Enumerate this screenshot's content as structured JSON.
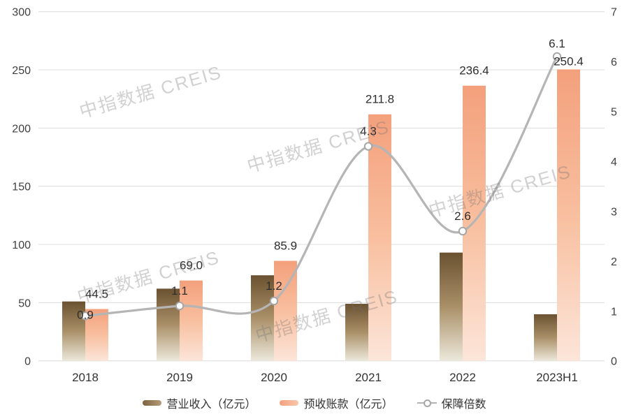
{
  "watermark": "中指数据 CREIS",
  "chart_data": {
    "type": "combo-bar-line",
    "categories": [
      "2018",
      "2019",
      "2020",
      "2021",
      "2022",
      "2023H1"
    ],
    "series": [
      {
        "name": "营业收入（亿元）",
        "type": "bar",
        "axis": "left",
        "values": [
          51,
          62,
          73.5,
          49,
          93,
          40
        ],
        "labels": [
          "",
          "",
          "",
          "",
          "",
          ""
        ],
        "color_top": "#6a5130",
        "color_mid": "#aa9068",
        "color_bottom": "#ece8db"
      },
      {
        "name": "预收账款（亿元）",
        "type": "bar",
        "axis": "left",
        "values": [
          44.5,
          69.0,
          85.9,
          211.8,
          236.4,
          250.4
        ],
        "labels": [
          "44.5",
          "69.0",
          "85.9",
          "211.8",
          "236.4",
          "250.4"
        ],
        "color_top": "#f4a07c",
        "color_mid": "#f8bf9f",
        "color_bottom": "#fce5d9"
      },
      {
        "name": "保障倍数",
        "type": "line",
        "axis": "right",
        "values": [
          0.9,
          1.1,
          1.2,
          4.3,
          2.6,
          6.1
        ],
        "labels": [
          "0.9",
          "1.1",
          "1.2",
          "4.3",
          "2.6",
          "6.1"
        ],
        "color": "#b5b5b5",
        "marker_fill": "#ffffff",
        "marker_stroke": "#a6a6a6"
      }
    ],
    "left_axis": {
      "min": 0,
      "max": 300,
      "ticks": [
        300,
        250,
        200,
        150,
        100,
        50,
        0
      ]
    },
    "right_axis": {
      "min": 0,
      "max": 7,
      "ticks": [
        7,
        6,
        5,
        4,
        3,
        2,
        1,
        0
      ]
    },
    "grid": true,
    "gridline_color": "#dcdcdc",
    "axis_text_color": "#404040",
    "label_text_color": "#2e2e2e",
    "legend_position": "bottom"
  }
}
